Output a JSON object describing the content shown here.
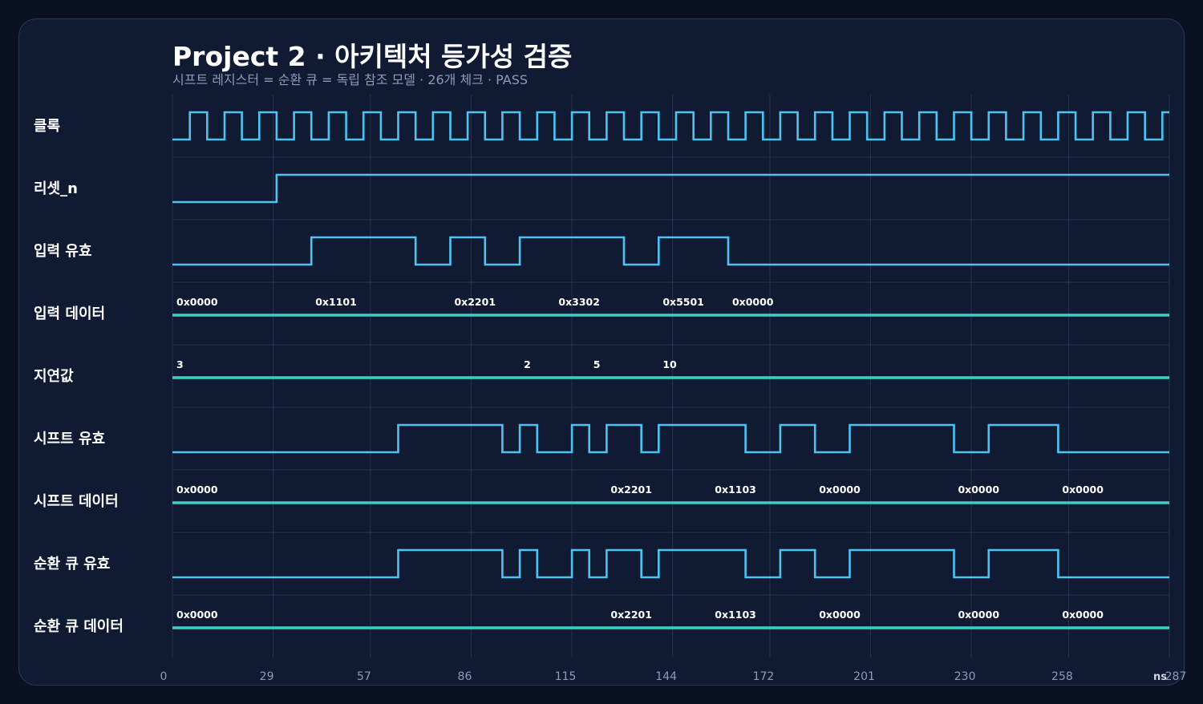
{
  "title": "Project 2 · 아키텍처 등가성 검증",
  "subtitle": "시프트 레지스터 = 순환 큐 = 독립 참조 모델 · 26개 체크 · PASS",
  "colors": {
    "background": "#0a1222",
    "panel": "#111a33",
    "grid": "#26324e",
    "digital_wave": "#4cc3f0",
    "bus_wave": "#3ad1c4",
    "text": "#ffffff",
    "muted": "#8e9ab6"
  },
  "time_axis": {
    "unit": "ns",
    "min": 0,
    "max": 287,
    "ticks": [
      0,
      29,
      57,
      86,
      115,
      144,
      172,
      201,
      230,
      258,
      287
    ]
  },
  "clock": {
    "name": "클록",
    "period": 10,
    "first_rise": 5
  },
  "signals": [
    {
      "name": "리셋_n",
      "type": "digital",
      "initial": 0,
      "edges": [
        30
      ]
    },
    {
      "name": "입력 유효",
      "type": "digital",
      "initial": 0,
      "edges": [
        40,
        70,
        80,
        90,
        100,
        130,
        140,
        160
      ]
    },
    {
      "name": "입력 데이터",
      "type": "bus",
      "labels": [
        {
          "t": 0,
          "text": "0x0000"
        },
        {
          "t": 40,
          "text": "0x1101"
        },
        {
          "t": 80,
          "text": "0x2201"
        },
        {
          "t": 110,
          "text": "0x3302"
        },
        {
          "t": 140,
          "text": "0x5501"
        },
        {
          "t": 160,
          "text": "0x0000"
        }
      ]
    },
    {
      "name": "지연값",
      "type": "bus",
      "labels": [
        {
          "t": 0,
          "text": "3"
        },
        {
          "t": 100,
          "text": "2"
        },
        {
          "t": 120,
          "text": "5"
        },
        {
          "t": 140,
          "text": "10"
        }
      ]
    },
    {
      "name": "시프트 유효",
      "type": "digital",
      "initial": 0,
      "edges": [
        65,
        95,
        100,
        105,
        115,
        120,
        125,
        135,
        140,
        165,
        175,
        185,
        195,
        225,
        235,
        255
      ]
    },
    {
      "name": "시프트 데이터",
      "type": "bus",
      "labels": [
        {
          "t": 0,
          "text": "0x0000"
        },
        {
          "t": 125,
          "text": "0x2201"
        },
        {
          "t": 155,
          "text": "0x1103"
        },
        {
          "t": 185,
          "text": "0x0000"
        },
        {
          "t": 225,
          "text": "0x0000"
        },
        {
          "t": 255,
          "text": "0x0000"
        }
      ]
    },
    {
      "name": "순환 큐 유효",
      "type": "digital",
      "initial": 0,
      "edges": [
        65,
        95,
        100,
        105,
        115,
        120,
        125,
        135,
        140,
        165,
        175,
        185,
        195,
        225,
        235,
        255
      ]
    },
    {
      "name": "순환 큐 데이터",
      "type": "bus",
      "labels": [
        {
          "t": 0,
          "text": "0x0000"
        },
        {
          "t": 125,
          "text": "0x2201"
        },
        {
          "t": 155,
          "text": "0x1103"
        },
        {
          "t": 185,
          "text": "0x0000"
        },
        {
          "t": 225,
          "text": "0x0000"
        },
        {
          "t": 255,
          "text": "0x0000"
        }
      ]
    }
  ]
}
